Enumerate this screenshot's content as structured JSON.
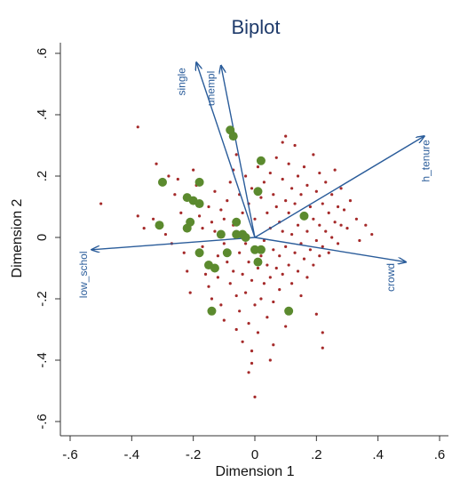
{
  "chart_data": {
    "type": "scatter",
    "title": "Biplot",
    "xlabel": "Dimension 1",
    "ylabel": "Dimension 2",
    "xlim": [
      -0.62,
      0.62
    ],
    "ylim": [
      -0.62,
      0.62
    ],
    "x_ticks": [
      -0.6,
      -0.4,
      -0.2,
      0,
      0.2,
      0.4,
      0.6
    ],
    "x_tick_labels": [
      "-.6",
      "-.4",
      "-.2",
      "0",
      ".2",
      ".4",
      ".6"
    ],
    "y_ticks": [
      -0.6,
      -0.4,
      -0.2,
      0,
      0.2,
      0.4,
      0.6
    ],
    "y_tick_labels": [
      "-.6",
      "-.4",
      "-.2",
      "0",
      ".2",
      ".4",
      ".6"
    ],
    "grid": false,
    "colors": {
      "title": "#1f3b6b",
      "vectors": "#2a5c9a",
      "small_points": "#a52a2a",
      "large_points": "#5b8a2e"
    },
    "vectors": [
      {
        "label": "single",
        "x": -0.19,
        "y": 0.57
      },
      {
        "label": "unempl",
        "x": -0.11,
        "y": 0.56
      },
      {
        "label": "h_tenure",
        "x": 0.55,
        "y": 0.33
      },
      {
        "label": "low_schol",
        "x": -0.53,
        "y": -0.04
      },
      {
        "label": "crowd",
        "x": 0.49,
        "y": -0.08
      }
    ],
    "series": [
      {
        "values": [
          [
            -0.3,
            0.18
          ],
          [
            -0.22,
            0.13
          ],
          [
            -0.18,
            0.18
          ],
          [
            -0.2,
            0.12
          ],
          [
            -0.18,
            0.11
          ],
          [
            -0.31,
            0.04
          ],
          [
            -0.21,
            0.05
          ],
          [
            -0.22,
            0.03
          ],
          [
            -0.08,
            0.35
          ],
          [
            -0.07,
            0.33
          ],
          [
            0.02,
            0.25
          ],
          [
            0.01,
            0.15
          ],
          [
            -0.06,
            0.05
          ],
          [
            -0.04,
            0.01
          ],
          [
            -0.06,
            0.01
          ],
          [
            -0.03,
            0.0
          ],
          [
            -0.11,
            0.01
          ],
          [
            -0.18,
            -0.05
          ],
          [
            -0.15,
            -0.09
          ],
          [
            -0.13,
            -0.1
          ],
          [
            -0.09,
            -0.05
          ],
          [
            0.02,
            -0.04
          ],
          [
            0.01,
            -0.08
          ],
          [
            0.0,
            -0.04
          ],
          [
            0.16,
            0.07
          ],
          [
            -0.14,
            -0.24
          ],
          [
            0.11,
            -0.24
          ]
        ]
      },
      {
        "values": [
          [
            -0.5,
            0.11
          ],
          [
            -0.38,
            0.36
          ],
          [
            -0.32,
            0.24
          ],
          [
            -0.28,
            0.2
          ],
          [
            -0.25,
            0.19
          ],
          [
            -0.26,
            0.14
          ],
          [
            -0.38,
            0.07
          ],
          [
            -0.36,
            0.03
          ],
          [
            -0.33,
            0.06
          ],
          [
            -0.29,
            0.01
          ],
          [
            -0.27,
            -0.02
          ],
          [
            -0.24,
            0.08
          ],
          [
            -0.23,
            -0.05
          ],
          [
            -0.22,
            -0.11
          ],
          [
            -0.21,
            -0.18
          ],
          [
            -0.2,
            0.22
          ],
          [
            -0.19,
            0.17
          ],
          [
            -0.18,
            0.07
          ],
          [
            -0.17,
            0.03
          ],
          [
            -0.17,
            -0.03
          ],
          [
            -0.16,
            -0.12
          ],
          [
            -0.15,
            0.1
          ],
          [
            -0.15,
            -0.16
          ],
          [
            -0.14,
            0.05
          ],
          [
            -0.14,
            -0.2
          ],
          [
            -0.13,
            0.15
          ],
          [
            -0.13,
            0.02
          ],
          [
            -0.12,
            -0.06
          ],
          [
            -0.12,
            -0.13
          ],
          [
            -0.11,
            0.09
          ],
          [
            -0.11,
            -0.22
          ],
          [
            -0.1,
            0.06
          ],
          [
            -0.1,
            -0.02
          ],
          [
            -0.1,
            -0.27
          ],
          [
            -0.09,
            0.12
          ],
          [
            -0.09,
            -0.08
          ],
          [
            -0.08,
            0.18
          ],
          [
            -0.08,
            -0.15
          ],
          [
            -0.07,
            0.22
          ],
          [
            -0.07,
            0.04
          ],
          [
            -0.07,
            -0.11
          ],
          [
            -0.06,
            0.27
          ],
          [
            -0.06,
            -0.19
          ],
          [
            -0.06,
            -0.3
          ],
          [
            -0.05,
            0.14
          ],
          [
            -0.05,
            -0.05
          ],
          [
            -0.05,
            -0.24
          ],
          [
            -0.04,
            0.08
          ],
          [
            -0.04,
            -0.12
          ],
          [
            -0.04,
            -0.34
          ],
          [
            -0.03,
            0.2
          ],
          [
            -0.03,
            -0.02
          ],
          [
            -0.03,
            -0.18
          ],
          [
            -0.02,
            0.11
          ],
          [
            -0.02,
            -0.08
          ],
          [
            -0.02,
            -0.28
          ],
          [
            -0.01,
            0.16
          ],
          [
            -0.01,
            -0.14
          ],
          [
            -0.01,
            -0.37
          ],
          [
            -0.01,
            -0.41
          ],
          [
            0.0,
            0.06
          ],
          [
            0.0,
            -0.22
          ],
          [
            0.0,
            -0.52
          ],
          [
            0.01,
            0.23
          ],
          [
            0.01,
            -0.1
          ],
          [
            0.01,
            -0.31
          ],
          [
            0.02,
            0.13
          ],
          [
            0.02,
            -0.06
          ],
          [
            0.02,
            -0.2
          ],
          [
            0.03,
            0.18
          ],
          [
            0.03,
            -0.01
          ],
          [
            0.03,
            -0.15
          ],
          [
            0.04,
            0.08
          ],
          [
            0.04,
            -0.09
          ],
          [
            0.04,
            -0.26
          ],
          [
            0.05,
            0.21
          ],
          [
            0.05,
            0.03
          ],
          [
            0.05,
            -0.13
          ],
          [
            0.06,
            0.14
          ],
          [
            0.06,
            -0.04
          ],
          [
            0.06,
            -0.21
          ],
          [
            0.07,
            0.26
          ],
          [
            0.07,
            0.1
          ],
          [
            0.07,
            -0.1
          ],
          [
            0.08,
            0.05
          ],
          [
            0.08,
            -0.06
          ],
          [
            0.08,
            -0.17
          ],
          [
            0.09,
            0.19
          ],
          [
            0.09,
            0.02
          ],
          [
            0.09,
            -0.12
          ],
          [
            0.1,
            0.12
          ],
          [
            0.1,
            -0.03
          ],
          [
            0.1,
            -0.29
          ],
          [
            0.11,
            0.24
          ],
          [
            0.11,
            0.08
          ],
          [
            0.11,
            -0.09
          ],
          [
            0.12,
            0.16
          ],
          [
            0.12,
            0.01
          ],
          [
            0.12,
            -0.15
          ],
          [
            0.13,
            0.3
          ],
          [
            0.13,
            0.11
          ],
          [
            0.13,
            -0.05
          ],
          [
            0.14,
            0.2
          ],
          [
            0.14,
            0.04
          ],
          [
            0.14,
            -0.11
          ],
          [
            0.15,
            0.14
          ],
          [
            0.15,
            -0.02
          ],
          [
            0.15,
            -0.19
          ],
          [
            0.16,
            0.23
          ],
          [
            0.16,
            -0.07
          ],
          [
            0.17,
            0.17
          ],
          [
            0.17,
            0.02
          ],
          [
            0.17,
            -0.13
          ],
          [
            0.18,
            0.1
          ],
          [
            0.18,
            -0.04
          ],
          [
            0.19,
            0.27
          ],
          [
            0.19,
            0.06
          ],
          [
            0.19,
            -0.09
          ],
          [
            0.2,
            0.15
          ],
          [
            0.2,
            -0.01
          ],
          [
            0.21,
            0.21
          ],
          [
            0.21,
            0.04
          ],
          [
            0.21,
            -0.06
          ],
          [
            0.22,
            0.11
          ],
          [
            0.22,
            -0.03
          ],
          [
            0.22,
            -0.31
          ],
          [
            0.23,
            0.18
          ],
          [
            0.23,
            0.02
          ],
          [
            0.24,
            0.08
          ],
          [
            0.24,
            -0.05
          ],
          [
            0.25,
            0.14
          ],
          [
            0.25,
            0.0
          ],
          [
            0.26,
            0.22
          ],
          [
            0.26,
            0.05
          ],
          [
            0.27,
            0.1
          ],
          [
            0.27,
            -0.02
          ],
          [
            0.28,
            0.16
          ],
          [
            0.28,
            0.04
          ],
          [
            0.29,
            0.09
          ],
          [
            0.3,
            0.03
          ],
          [
            0.31,
            0.12
          ],
          [
            0.33,
            0.06
          ],
          [
            0.34,
            -0.01
          ],
          [
            0.36,
            0.04
          ],
          [
            0.38,
            0.01
          ],
          [
            0.1,
            0.33
          ],
          [
            0.09,
            0.31
          ],
          [
            0.22,
            -0.36
          ],
          [
            0.2,
            -0.25
          ],
          [
            0.06,
            -0.35
          ],
          [
            -0.02,
            -0.44
          ],
          [
            0.05,
            -0.4
          ]
        ]
      }
    ]
  }
}
